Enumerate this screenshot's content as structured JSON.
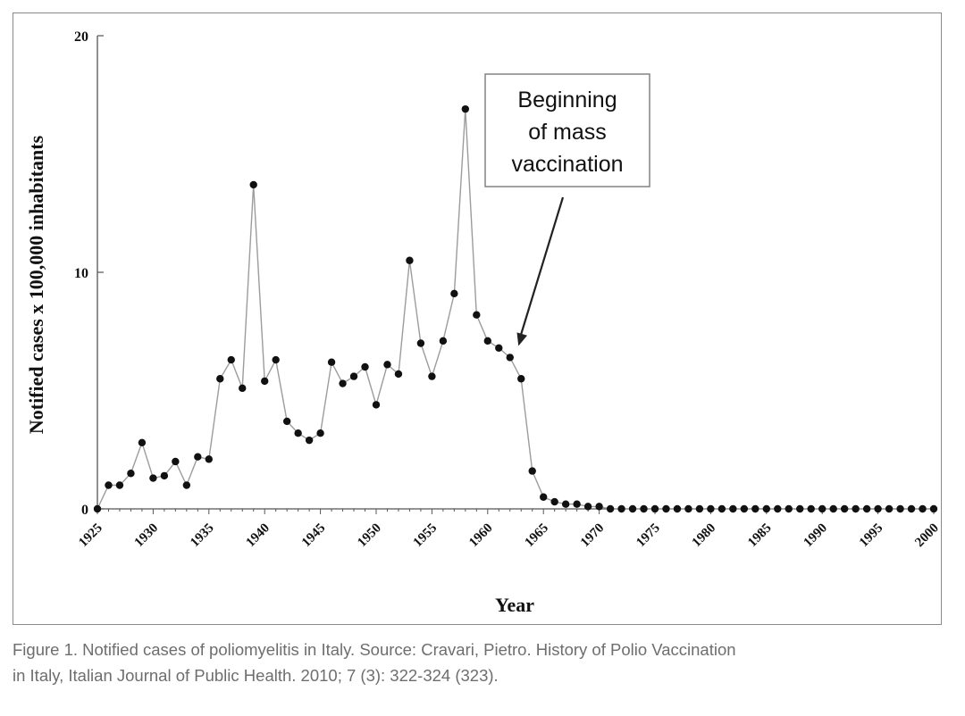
{
  "chart_data": {
    "type": "line",
    "title": "",
    "xlabel": "Year",
    "ylabel": "Notified cases x 100,000 inhabitants",
    "xlim": [
      1925,
      2000
    ],
    "ylim": [
      0,
      20
    ],
    "yticks": [
      "0",
      "10",
      "20"
    ],
    "xticks": [
      "1925",
      "1930",
      "1935",
      "1940",
      "1945",
      "1950",
      "1955",
      "1960",
      "1965",
      "1970",
      "1975",
      "1980",
      "1985",
      "1990",
      "1995",
      "2000"
    ],
    "annotation": {
      "lines": [
        "Beginning",
        "of mass",
        "vaccination"
      ],
      "points_to_year": 1963,
      "points_to_value": 7.0
    },
    "series": [
      {
        "name": "Notified cases",
        "x": [
          1925,
          1926,
          1927,
          1928,
          1929,
          1930,
          1931,
          1932,
          1933,
          1934,
          1935,
          1936,
          1937,
          1938,
          1939,
          1940,
          1941,
          1942,
          1943,
          1944,
          1945,
          1946,
          1947,
          1948,
          1949,
          1950,
          1951,
          1952,
          1953,
          1954,
          1955,
          1956,
          1957,
          1958,
          1959,
          1960,
          1961,
          1962,
          1963,
          1964,
          1965,
          1966,
          1967,
          1968,
          1969,
          1970,
          1971,
          1972,
          1973,
          1974,
          1975,
          1976,
          1977,
          1978,
          1979,
          1980,
          1981,
          1982,
          1983,
          1984,
          1985,
          1986,
          1987,
          1988,
          1989,
          1990,
          1991,
          1992,
          1993,
          1994,
          1995,
          1996,
          1997,
          1998,
          1999,
          2000
        ],
        "values": [
          0.0,
          1.0,
          1.0,
          1.5,
          2.8,
          1.3,
          1.4,
          2.0,
          1.0,
          2.2,
          2.1,
          5.5,
          6.3,
          5.1,
          13.7,
          5.4,
          6.3,
          3.7,
          3.2,
          2.9,
          3.2,
          6.2,
          5.3,
          5.6,
          6.0,
          4.4,
          6.1,
          5.7,
          10.5,
          7.0,
          5.6,
          7.1,
          9.1,
          16.9,
          8.2,
          7.1,
          6.8,
          6.4,
          5.5,
          1.6,
          0.5,
          0.3,
          0.2,
          0.2,
          0.1,
          0.1,
          0.0,
          0.0,
          0.0,
          0.0,
          0.0,
          0.0,
          0.0,
          0.0,
          0.0,
          0.0,
          0.0,
          0.0,
          0.0,
          0.0,
          0.0,
          0.0,
          0.0,
          0.0,
          0.0,
          0.0,
          0.0,
          0.0,
          0.0,
          0.0,
          0.0,
          0.0,
          0.0,
          0.0,
          0.0,
          0.0
        ]
      }
    ],
    "colors": {
      "line": "#9c9c9c",
      "marker": "#111111",
      "axis": "#555555",
      "text": "#111111"
    }
  },
  "caption": {
    "line1": "Figure 1. Notified cases of poliomyelitis in Italy. Source: Cravari, Pietro. History of Polio Vaccination",
    "line2": "in Italy, Italian Journal of Public Health. 2010; 7 (3): 322-324 (323)."
  }
}
